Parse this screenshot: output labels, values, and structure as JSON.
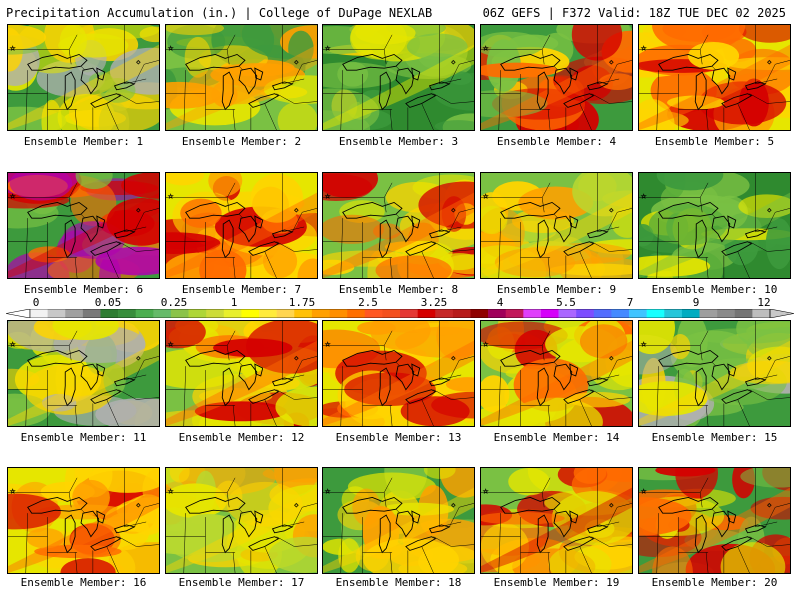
{
  "header": {
    "title_left": "Precipitation Accumulation (in.) | College of DuPage NEXLAB",
    "title_right": "06Z GEFS | F372 Valid: 18Z TUE DEC 02 2025"
  },
  "colorbar": {
    "labels": [
      "0",
      "0.05",
      "0.25",
      "1",
      "1.75",
      "2.5",
      "3.25",
      "4",
      "5.5",
      "7",
      "9",
      "12"
    ],
    "colors": [
      "#f2f2f2",
      "#c8c8c8",
      "#a0a0a0",
      "#7a7a7a",
      "#2e7d32",
      "#388e3c",
      "#4caf50",
      "#66bb6a",
      "#8bc34a",
      "#aed636",
      "#cddc39",
      "#e8ef2c",
      "#ffff00",
      "#ffeb3b",
      "#ffd54f",
      "#ffc107",
      "#ffa000",
      "#ff8f00",
      "#ff6f00",
      "#ff5722",
      "#f4511e",
      "#e53935",
      "#d50000",
      "#c62828",
      "#b71c1c",
      "#8e0000",
      "#a0005a",
      "#c2185b",
      "#e040fb",
      "#d500f9",
      "#aa66ff",
      "#7c4dff",
      "#536dfe",
      "#448aff",
      "#40c4ff",
      "#18ffff",
      "#26c6da",
      "#00acc1",
      "#9e9e9e",
      "#8a8a8a",
      "#757575",
      "#bdbdbd"
    ]
  },
  "panels": [
    {
      "caption": "Ensemble Member: 1",
      "palette": [
        "#3d9a3d",
        "#7ac143",
        "#e6e600",
        "#ffd400",
        "#b0b0b0"
      ]
    },
    {
      "caption": "Ensemble Member: 2",
      "palette": [
        "#7ac143",
        "#3d9a3d",
        "#e6e600",
        "#ffa000",
        "#ffd400"
      ]
    },
    {
      "caption": "Ensemble Member: 3",
      "palette": [
        "#2f8a2f",
        "#3d9a3d",
        "#7ac143",
        "#e6e600",
        "#ffd400"
      ]
    },
    {
      "caption": "Ensemble Member: 4",
      "palette": [
        "#3d9a3d",
        "#7ac143",
        "#ffd400",
        "#ff6a00",
        "#d40000"
      ]
    },
    {
      "caption": "Ensemble Member: 5",
      "palette": [
        "#e6e600",
        "#ffd400",
        "#ffa000",
        "#ff6a00",
        "#d40000"
      ]
    },
    {
      "caption": "Ensemble Member: 6",
      "palette": [
        "#3d9a3d",
        "#7ac143",
        "#ff6a00",
        "#d40000",
        "#b000b0"
      ]
    },
    {
      "caption": "Ensemble Member: 7",
      "palette": [
        "#e6e600",
        "#ffd400",
        "#ffa000",
        "#ff6a00",
        "#d40000"
      ]
    },
    {
      "caption": "Ensemble Member: 8",
      "palette": [
        "#7ac143",
        "#e6e600",
        "#ffd400",
        "#ff6a00",
        "#d40000"
      ]
    },
    {
      "caption": "Ensemble Member: 9",
      "palette": [
        "#7ac143",
        "#b8d830",
        "#e6e600",
        "#ffd400",
        "#ffa000"
      ]
    },
    {
      "caption": "Ensemble Member: 10",
      "palette": [
        "#2f8a2f",
        "#3d9a3d",
        "#5aad3a",
        "#7ac143",
        "#e6e600"
      ]
    },
    {
      "caption": "Ensemble Member: 11",
      "palette": [
        "#3d9a3d",
        "#7ac143",
        "#e6e600",
        "#ffd400",
        "#b0b0b0"
      ]
    },
    {
      "caption": "Ensemble Member: 12",
      "palette": [
        "#7ac143",
        "#e6e600",
        "#ffd400",
        "#ff6a00",
        "#d40000"
      ]
    },
    {
      "caption": "Ensemble Member: 13",
      "palette": [
        "#e6e600",
        "#ffd400",
        "#ffa000",
        "#ff6a00",
        "#d40000"
      ]
    },
    {
      "caption": "Ensemble Member: 14",
      "palette": [
        "#7ac143",
        "#e6e600",
        "#ffd400",
        "#ff6a00",
        "#d40000"
      ]
    },
    {
      "caption": "Ensemble Member: 15",
      "palette": [
        "#3d9a3d",
        "#7ac143",
        "#e6e600",
        "#ffd400",
        "#b0b0b0"
      ]
    },
    {
      "caption": "Ensemble Member: 16",
      "palette": [
        "#e6e600",
        "#ffd400",
        "#ffa000",
        "#ff6a00",
        "#d40000"
      ]
    },
    {
      "caption": "Ensemble Member: 17",
      "palette": [
        "#7ac143",
        "#b8d830",
        "#e6e600",
        "#ffd400",
        "#ffa000"
      ]
    },
    {
      "caption": "Ensemble Member: 18",
      "palette": [
        "#3d9a3d",
        "#7ac143",
        "#e6e600",
        "#ffd400",
        "#ffa000"
      ]
    },
    {
      "caption": "Ensemble Member: 19",
      "palette": [
        "#7ac143",
        "#ffd400",
        "#ff6a00",
        "#d40000",
        "#e6e600"
      ]
    },
    {
      "caption": "Ensemble Member: 20",
      "palette": [
        "#3d9a3d",
        "#7ac143",
        "#e6e600",
        "#ff6a00",
        "#d40000"
      ]
    }
  ]
}
